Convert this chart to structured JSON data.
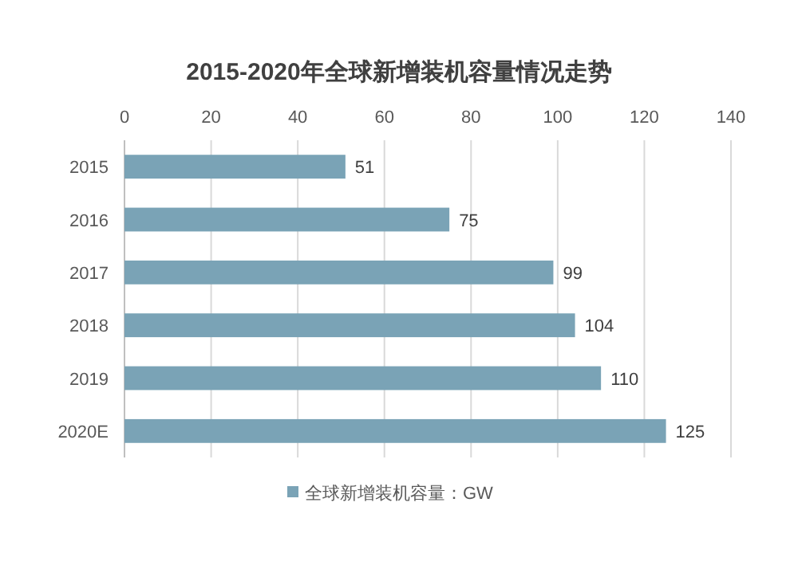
{
  "chart_data": {
    "type": "bar",
    "orientation": "horizontal",
    "title": "2015-2020年全球新增装机容量情况走势",
    "categories": [
      "2015",
      "2016",
      "2017",
      "2018",
      "2019",
      "2020E"
    ],
    "series": [
      {
        "name": "全球新增装机容量：GW",
        "color": "#7aa3b6",
        "values": [
          51,
          75,
          99,
          104,
          110,
          125
        ]
      }
    ],
    "xlim": [
      0,
      140
    ],
    "xticks": [
      0,
      20,
      40,
      60,
      80,
      100,
      120,
      140
    ],
    "grid": "x",
    "legend": "bottom",
    "data_labels": true
  }
}
